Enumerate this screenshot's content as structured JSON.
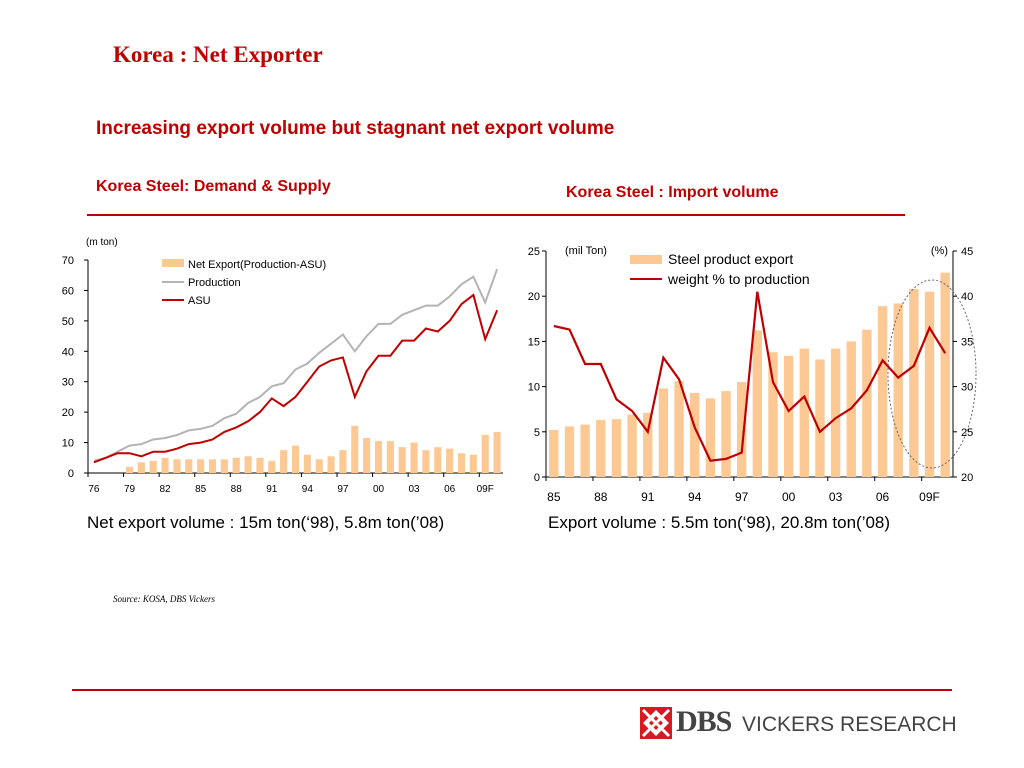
{
  "page": {
    "title": "Korea : Net Exporter",
    "headline": "Increasing export volume but stagnant net export volume",
    "left_subtitle": "Korea Steel: Demand & Supply",
    "right_subtitle": "Korea Steel : Import volume",
    "left_caption": "Net export volume : 15m ton(‘98), 5.8m ton(’08)",
    "right_caption": "Export volume : 5.5m ton(‘98), 20.8m ton(’08)",
    "source": "Source: KOSA, DBS Vickers",
    "logo": {
      "mark_icon": "dbs-mark-icon",
      "dbs": "DBS",
      "vickers": "VICKERS RESEARCH"
    },
    "colors": {
      "accent": "#c00000",
      "bar": "#fcc995",
      "line_gray": "#b4b4b4"
    }
  },
  "chart_data": [
    {
      "type": "bar+line",
      "ylabel": "(m ton)",
      "ylim": [
        0,
        70
      ],
      "yticks": [
        0,
        10,
        20,
        30,
        40,
        50,
        60,
        70
      ],
      "xtick_labels": [
        "76",
        "79",
        "82",
        "85",
        "88",
        "91",
        "94",
        "97",
        "00",
        "03",
        "06",
        "09F"
      ],
      "legend_position": "top-center",
      "series": [
        {
          "name": "Net Export(Production-ASU)",
          "kind": "bar",
          "values": [
            0,
            0,
            0,
            2,
            3.5,
            4,
            5,
            4.5,
            4.5,
            4.5,
            4.5,
            4.5,
            5,
            5.5,
            5,
            4,
            7.5,
            9,
            6,
            4.5,
            5.5,
            7.5,
            15.5,
            11.5,
            10.5,
            10.5,
            8.5,
            10,
            7.5,
            8.5,
            8,
            6.5,
            6,
            12.5,
            13.5
          ]
        },
        {
          "name": "Production",
          "kind": "line",
          "values": [
            4,
            5,
            7,
            9,
            9.5,
            11,
            11.5,
            12.5,
            14,
            14.5,
            15.5,
            18,
            19.5,
            23,
            25,
            28.5,
            29.5,
            34,
            36,
            39.5,
            42.5,
            45.5,
            40,
            45,
            49,
            49,
            52,
            53.5,
            55,
            55,
            58,
            62,
            64.5,
            56,
            67
          ]
        },
        {
          "name": "ASU",
          "kind": "line",
          "values": [
            3.5,
            5,
            6.5,
            6.5,
            5.5,
            7,
            7,
            8,
            9.5,
            10,
            11,
            13.5,
            15,
            17,
            20,
            24.5,
            22,
            25,
            30,
            35,
            37,
            38,
            25,
            33.5,
            38.5,
            38.5,
            43.5,
            43.5,
            47.5,
            46.5,
            50,
            55.5,
            58.5,
            44,
            53.5
          ]
        }
      ]
    },
    {
      "type": "bar+line",
      "ylabel": "(mil Ton)",
      "y2label": "(%)",
      "ylim": [
        0,
        25
      ],
      "y2lim": [
        20,
        45
      ],
      "yticks": [
        0,
        5,
        10,
        15,
        20,
        25
      ],
      "y2ticks": [
        20,
        25,
        30,
        35,
        40,
        45
      ],
      "xtick_labels": [
        "85",
        "88",
        "91",
        "94",
        "97",
        "00",
        "03",
        "06",
        "09F"
      ],
      "legend_position": "top-center",
      "series": [
        {
          "name": "Steel product export",
          "kind": "bar",
          "axis": "left",
          "values": [
            5.2,
            5.6,
            5.8,
            6.3,
            6.4,
            6.9,
            7.1,
            9.8,
            10.6,
            9.3,
            8.7,
            9.5,
            10.5,
            16.2,
            13.8,
            13.4,
            14.2,
            13,
            14.2,
            15,
            16.3,
            18.9,
            19.2,
            20.8,
            20.5,
            22.6
          ]
        },
        {
          "name": "weight % to production",
          "kind": "line",
          "axis": "right",
          "values": [
            36.7,
            36.3,
            32.5,
            32.5,
            28.6,
            27.3,
            25,
            33.2,
            30.8,
            25.5,
            21.8,
            22,
            22.7,
            40.5,
            30.5,
            27.3,
            28.9,
            25,
            26.5,
            27.6,
            29.6,
            32.9,
            31,
            32.3,
            36.5,
            33.7
          ]
        }
      ]
    }
  ]
}
